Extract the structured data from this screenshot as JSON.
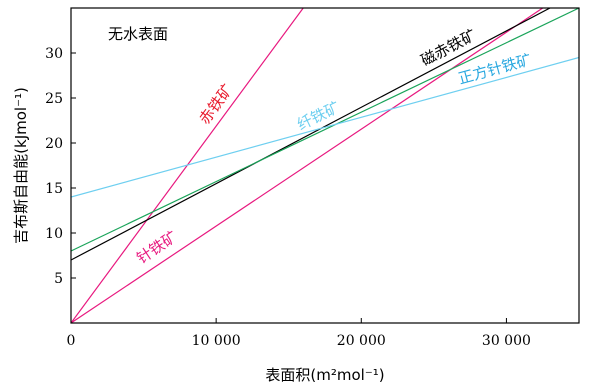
{
  "chart_data": {
    "type": "line",
    "annotation_title": "无水表面",
    "xlabel": "表面积(m²mol⁻¹)",
    "ylabel": "吉布斯自由能(kJmol⁻¹)",
    "xlim": [
      0,
      35000
    ],
    "ylim": [
      0,
      35
    ],
    "xticks": [
      0,
      10000,
      20000,
      30000
    ],
    "xtick_labels": [
      "0",
      "10 000",
      "20 000",
      "30 000"
    ],
    "yticks": [
      5,
      10,
      15,
      20,
      25,
      30
    ],
    "ytick_labels": [
      "5",
      "10",
      "15",
      "20",
      "25",
      "30"
    ],
    "grid": false,
    "series": [
      {
        "name": "赤铁矿",
        "color": "#e8197f",
        "x": [
          0,
          16000
        ],
        "y": [
          0,
          35
        ]
      },
      {
        "name": "针铁矿",
        "color": "#e8197f",
        "x": [
          0,
          32500
        ],
        "y": [
          0,
          35
        ]
      },
      {
        "name": "磁赤铁矿",
        "color": "#000000",
        "x": [
          0,
          33000
        ],
        "y": [
          7,
          35
        ]
      },
      {
        "name": "纤铁矿",
        "color": "#1aa45a",
        "x": [
          0,
          35000
        ],
        "y": [
          8,
          35
        ]
      },
      {
        "name": "正方针铁矿",
        "color": "#6ecff0",
        "x": [
          0,
          35000
        ],
        "y": [
          14,
          29.5
        ]
      }
    ],
    "labels": [
      {
        "text": "赤铁矿",
        "series": 0,
        "color": "#e8192b"
      },
      {
        "text": "针铁矿",
        "series": 1,
        "color": "#e8197f"
      },
      {
        "text": "磁赤铁矿",
        "series": 2,
        "color": "#000000"
      },
      {
        "text": "纤铁矿",
        "series": 3,
        "color": "#6ecff0"
      },
      {
        "text": "正方针铁矿",
        "series": 4,
        "color": "#29a8e0"
      }
    ]
  }
}
